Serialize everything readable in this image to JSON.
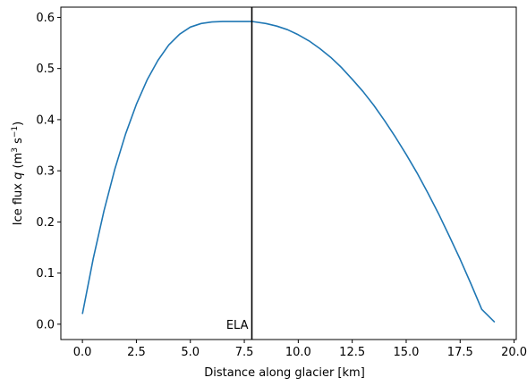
{
  "chart_data": {
    "type": "line",
    "xlabel": "Distance along glacier [km]",
    "ylabel": {
      "prefix": "Ice flux ",
      "var": "q",
      "unit_open": " (m",
      "unit_exp1": "3",
      "unit_mid": " s",
      "unit_exp2": "−1",
      "unit_close": ")"
    },
    "xlim": [
      -1.0,
      20.1
    ],
    "ylim": [
      -0.03,
      0.62
    ],
    "xticks": [
      0.0,
      2.5,
      5.0,
      7.5,
      10.0,
      12.5,
      15.0,
      17.5,
      20.0
    ],
    "xtick_labels": [
      "0.0",
      "2.5",
      "5.0",
      "7.5",
      "10.0",
      "12.5",
      "15.0",
      "17.5",
      "20.0"
    ],
    "yticks": [
      0.0,
      0.1,
      0.2,
      0.3,
      0.4,
      0.5,
      0.6
    ],
    "ytick_labels": [
      "0.0",
      "0.1",
      "0.2",
      "0.3",
      "0.4",
      "0.5",
      "0.6"
    ],
    "series": [
      {
        "color": "#1f77b4",
        "x": [
          0.0,
          0.5,
          1.0,
          1.5,
          2.0,
          2.5,
          3.0,
          3.5,
          4.0,
          4.5,
          5.0,
          5.5,
          6.0,
          6.5,
          7.0,
          7.5,
          7.85,
          8.5,
          9.0,
          9.5,
          10.0,
          10.5,
          11.0,
          11.5,
          12.0,
          12.5,
          13.0,
          13.5,
          14.0,
          14.5,
          15.0,
          15.5,
          16.0,
          16.5,
          17.0,
          17.5,
          18.0,
          18.5,
          19.1
        ],
        "y": [
          0.02,
          0.128,
          0.222,
          0.303,
          0.372,
          0.43,
          0.478,
          0.516,
          0.546,
          0.567,
          0.581,
          0.588,
          0.591,
          0.592,
          0.592,
          0.592,
          0.592,
          0.588,
          0.583,
          0.576,
          0.566,
          0.554,
          0.539,
          0.522,
          0.502,
          0.479,
          0.455,
          0.428,
          0.398,
          0.366,
          0.332,
          0.296,
          0.257,
          0.216,
          0.172,
          0.127,
          0.079,
          0.029,
          0.004
        ]
      }
    ],
    "vline": {
      "x": 7.85,
      "color": "#000000",
      "label": "ELA"
    },
    "grid": false,
    "legend": "none"
  }
}
